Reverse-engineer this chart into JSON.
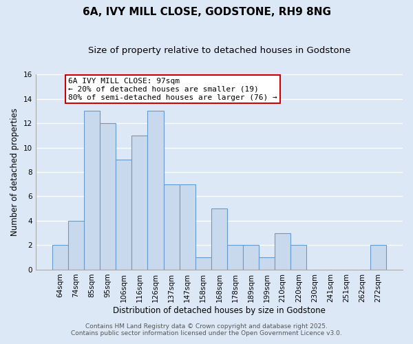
{
  "title": "6A, IVY MILL CLOSE, GODSTONE, RH9 8NG",
  "subtitle": "Size of property relative to detached houses in Godstone",
  "xlabel": "Distribution of detached houses by size in Godstone",
  "ylabel": "Number of detached properties",
  "bar_labels": [
    "64sqm",
    "74sqm",
    "85sqm",
    "95sqm",
    "106sqm",
    "116sqm",
    "126sqm",
    "137sqm",
    "147sqm",
    "158sqm",
    "168sqm",
    "178sqm",
    "189sqm",
    "199sqm",
    "210sqm",
    "220sqm",
    "230sqm",
    "241sqm",
    "251sqm",
    "262sqm",
    "272sqm"
  ],
  "bar_values": [
    2,
    4,
    13,
    12,
    9,
    11,
    13,
    7,
    7,
    1,
    5,
    2,
    2,
    1,
    3,
    2,
    0,
    0,
    0,
    0,
    2
  ],
  "bar_color": "#c9d9ed",
  "bar_edge_color": "#6699cc",
  "background_color": "#dce8f5",
  "grid_color": "#ffffff",
  "annotation_box_text": "6A IVY MILL CLOSE: 97sqm\n← 20% of detached houses are smaller (19)\n80% of semi-detached houses are larger (76) →",
  "annotation_box_edge_color": "#cc0000",
  "annotation_box_facecolor": "#ffffff",
  "footer_line1": "Contains HM Land Registry data © Crown copyright and database right 2025.",
  "footer_line2": "Contains public sector information licensed under the Open Government Licence v3.0.",
  "ylim": [
    0,
    16
  ],
  "yticks": [
    0,
    2,
    4,
    6,
    8,
    10,
    12,
    14,
    16
  ],
  "title_fontsize": 11,
  "subtitle_fontsize": 9.5,
  "axis_label_fontsize": 8.5,
  "tick_fontsize": 7.5,
  "annotation_fontsize": 8,
  "footer_fontsize": 6.5
}
